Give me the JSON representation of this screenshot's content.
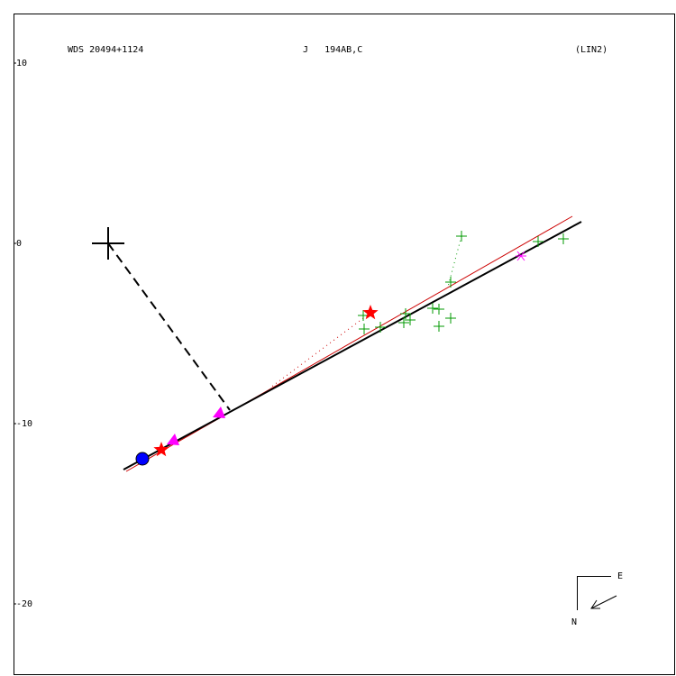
{
  "chart_data": {
    "type": "scatter",
    "title": "WDS 20494+1124",
    "subtitle": "J   194AB,C",
    "annotations": [
      "(LIN2)",
      "E",
      "N"
    ],
    "xlim": [
      -5.25,
      31.5
    ],
    "ylim": [
      -24,
      12.75
    ],
    "yticks": [
      10,
      0,
      -10,
      -20
    ],
    "series": [
      {
        "color": "#000000",
        "marker": "cross",
        "x": [
          0
        ],
        "values": [
          0
        ]
      },
      {
        "color": "#000000",
        "line": "dashed",
        "x": [
          0,
          6.75
        ],
        "values": [
          0,
          -9.25
        ]
      },
      {
        "color": "#cc0000",
        "line": "solid",
        "x": [
          1,
          25.75
        ],
        "values": [
          -12.65,
          1.5
        ]
      },
      {
        "color": "#000000",
        "line": "thick",
        "x": [
          0.85,
          26.25
        ],
        "values": [
          -12.55,
          1.2
        ]
      },
      {
        "color": "#cc0000",
        "line": "dotted",
        "x": [
          14.55,
          9
        ],
        "values": [
          -3.85,
          -8
        ]
      },
      {
        "color": "#009900",
        "line": "dotted",
        "x": [
          19.6,
          18.85
        ],
        "values": [
          0.4,
          -2.4
        ]
      },
      {
        "color": "#009900",
        "marker": "plus",
        "x": [
          19.6,
          19,
          23.85,
          25.25,
          14.15,
          14.2,
          15.1,
          16.5,
          16.4,
          16.75,
          18.35,
          18.35,
          19,
          18
        ],
        "values": [
          0.4,
          -2.15,
          0.1,
          0.25,
          -4,
          -4.75,
          -4.65,
          -3.9,
          -4.4,
          -4.25,
          -3.65,
          -4.6,
          -4.15,
          -3.6
        ]
      },
      {
        "color": "#ff00ff",
        "marker": "asterisk",
        "x": [
          22.9
        ],
        "values": [
          -0.7
        ]
      },
      {
        "color": "#ff00ff",
        "marker": "triangle",
        "x": [
          6.2,
          3.65
        ],
        "values": [
          -9.4,
          -10.9
        ]
      },
      {
        "color": "#ff0000",
        "marker": "star",
        "x": [
          14.55,
          2.95
        ],
        "values": [
          -3.85,
          -11.45
        ]
      },
      {
        "color": "#0000ff",
        "marker": "circle",
        "x": [
          1.9
        ],
        "values": [
          -11.95
        ]
      }
    ]
  }
}
